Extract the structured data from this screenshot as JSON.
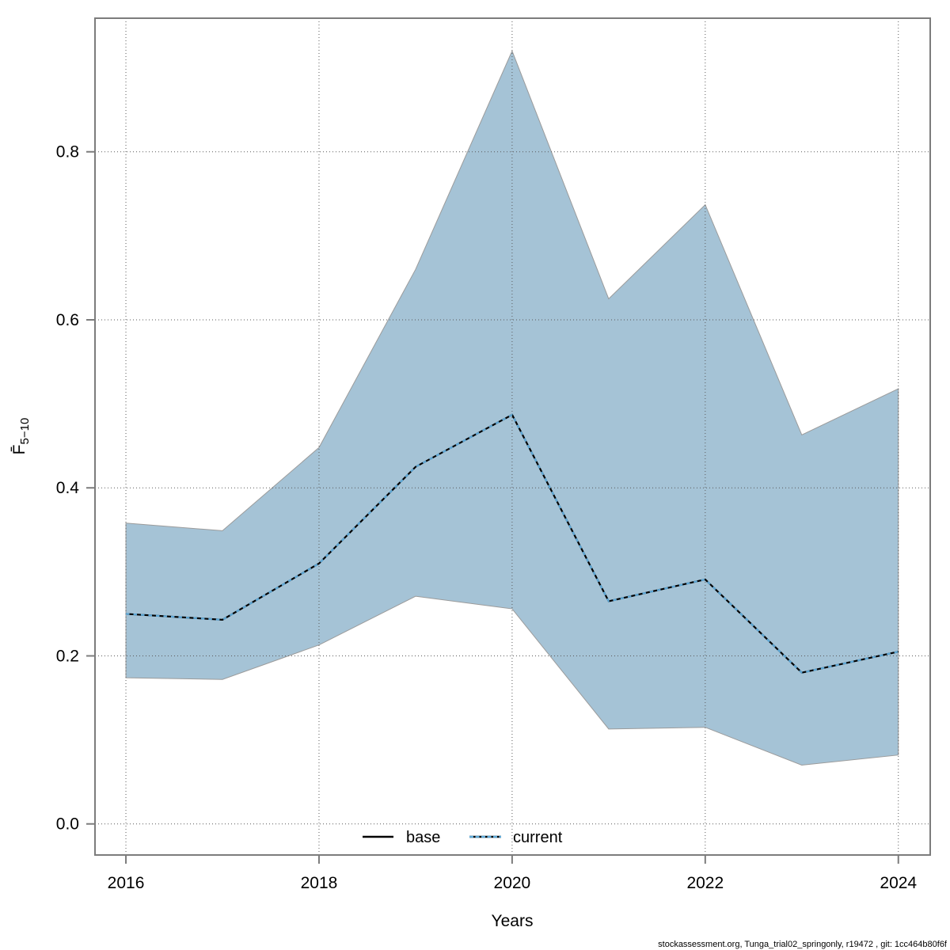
{
  "footer": {
    "text": "stockassessment.org, Tunga_trial02_springonly, r19472 , git: 1cc464b80f6f"
  },
  "chart_data": {
    "type": "area",
    "title": "",
    "xlabel": "Years",
    "ylabel_main": "F̄",
    "ylabel_sub": "5−10",
    "x": [
      2016,
      2017,
      2018,
      2019,
      2020,
      2021,
      2022,
      2023,
      2024
    ],
    "x_ticks": [
      2016,
      2018,
      2020,
      2022,
      2024
    ],
    "y_ticks": [
      "0.0",
      "0.2",
      "0.4",
      "0.6",
      "0.8"
    ],
    "x_range": [
      2015.68,
      2024.33
    ],
    "y_range": [
      -0.037,
      0.959
    ],
    "grid": "dotted",
    "legend_position": "bottom-center-inside",
    "legend": [
      {
        "label": "base",
        "line": "solid",
        "color": "#000000"
      },
      {
        "label": "current",
        "line": "dotted",
        "color": "#5ea9d8"
      }
    ],
    "series": [
      {
        "name": "base",
        "values": [
          0.25,
          0.243,
          0.31,
          0.425,
          0.487,
          0.265,
          0.291,
          0.18,
          0.205
        ]
      },
      {
        "name": "current",
        "values": [
          0.25,
          0.243,
          0.31,
          0.425,
          0.487,
          0.265,
          0.291,
          0.18,
          0.205
        ],
        "band_upper": [
          0.358,
          0.349,
          0.448,
          0.66,
          0.92,
          0.625,
          0.737,
          0.463,
          0.518
        ],
        "band_lower": [
          0.174,
          0.172,
          0.213,
          0.271,
          0.256,
          0.113,
          0.115,
          0.07,
          0.082
        ]
      }
    ],
    "colors": {
      "band": "#a5c3d6",
      "band_edge": "#9b9b9b",
      "base_line": "#000000",
      "current_line": "#5ea9d8",
      "grid": "#5a5a5a",
      "box": "#7c7c7c"
    }
  }
}
